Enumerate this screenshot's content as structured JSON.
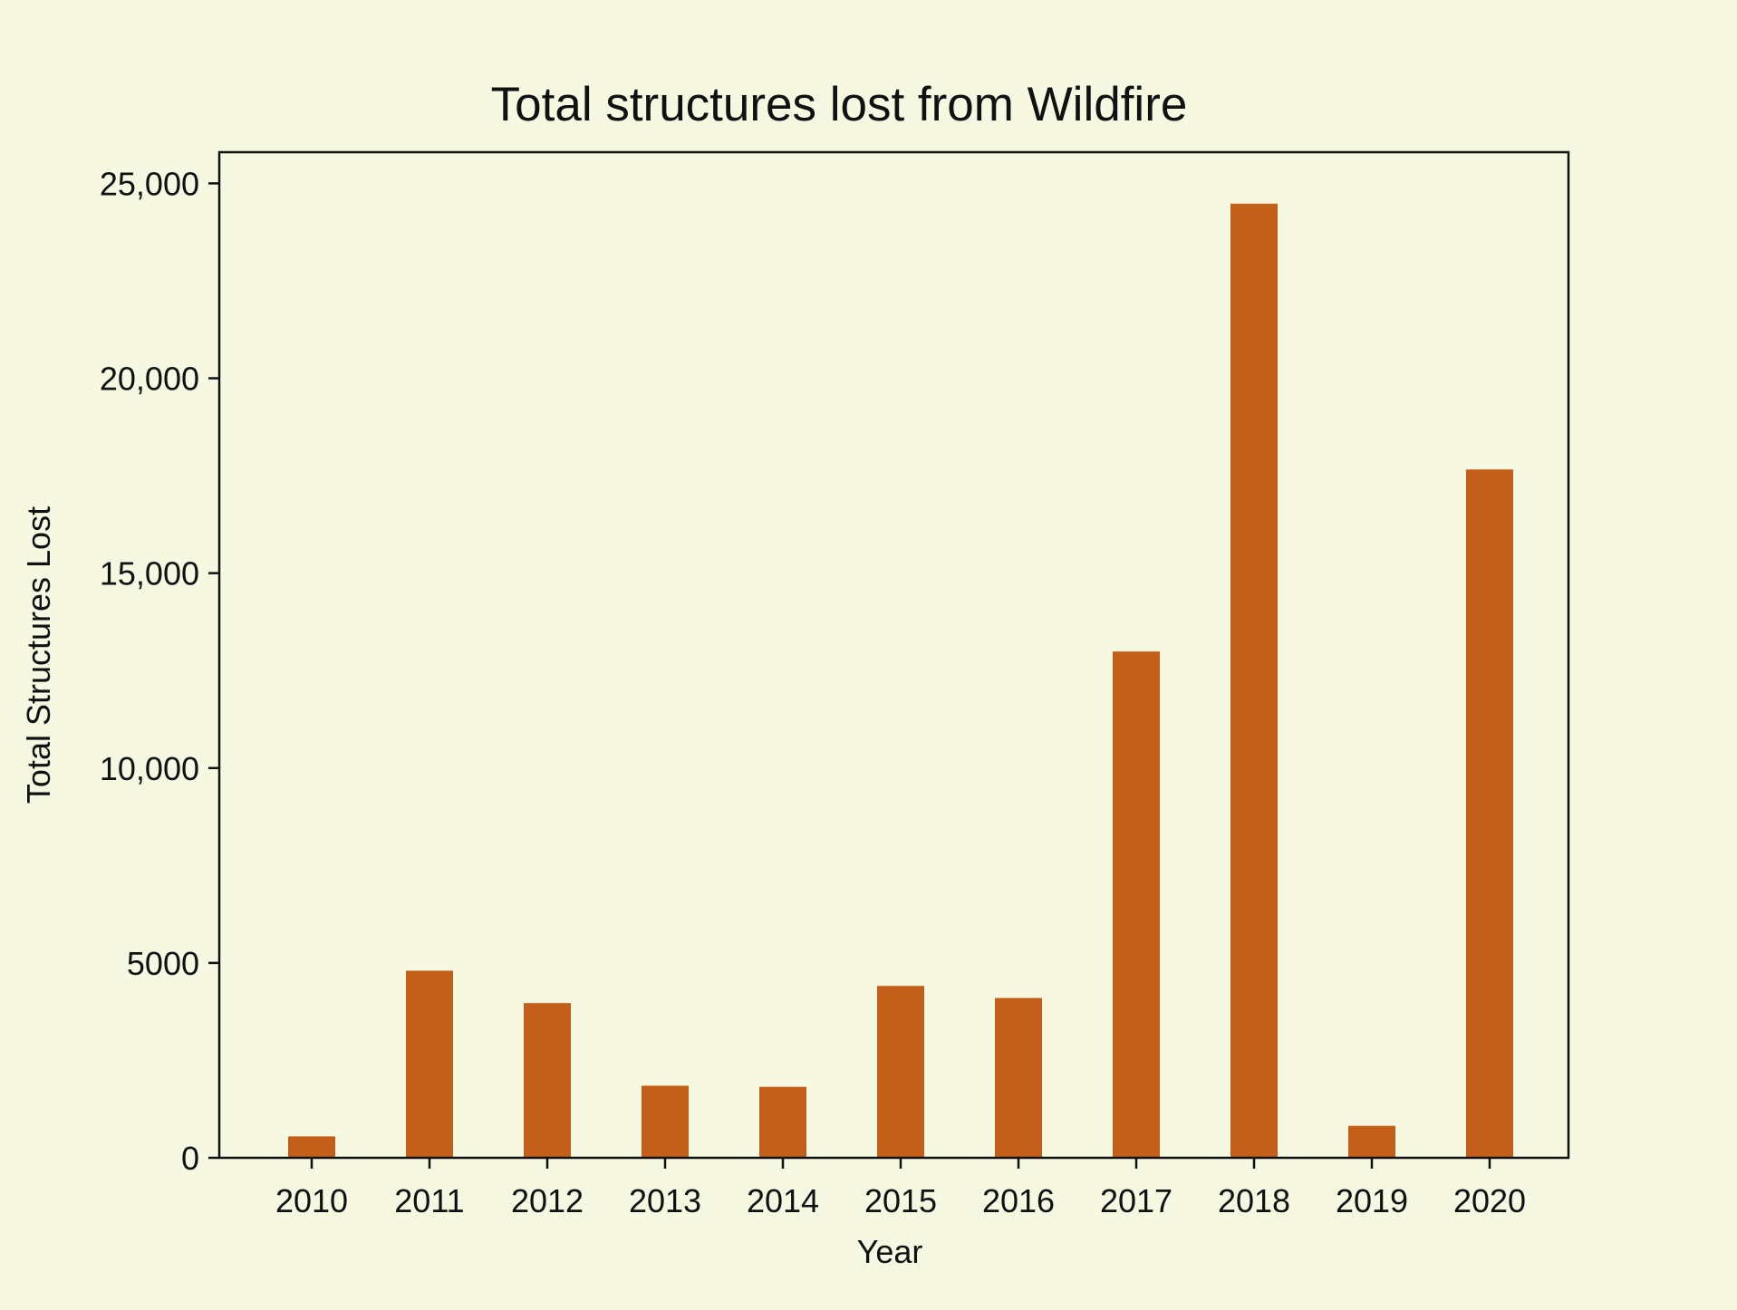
{
  "chart_data": {
    "type": "bar",
    "title": "Total structures lost from Wildfire",
    "xlabel": "Year",
    "ylabel": "Total Structures Lost",
    "categories": [
      "2010",
      "2011",
      "2012",
      "2013",
      "2014",
      "2015",
      "2016",
      "2017",
      "2018",
      "2019",
      "2020"
    ],
    "values": [
      550,
      4800,
      3970,
      1850,
      1820,
      4410,
      4100,
      12990,
      24480,
      820,
      17660
    ],
    "ylim": [
      0,
      25800
    ],
    "yticks": [
      {
        "value": 0,
        "label": "0"
      },
      {
        "value": 5000,
        "label": "5000"
      },
      {
        "value": 10000,
        "label": "10,000"
      },
      {
        "value": 15000,
        "label": "15,000"
      },
      {
        "value": 20000,
        "label": "20,000"
      },
      {
        "value": 25000,
        "label": "25,000"
      }
    ],
    "grid": false,
    "legend": "none",
    "colors": {
      "bar": "#c45f19",
      "background": "#f6f8e2",
      "axis": "#111111",
      "text": "#111111"
    }
  }
}
